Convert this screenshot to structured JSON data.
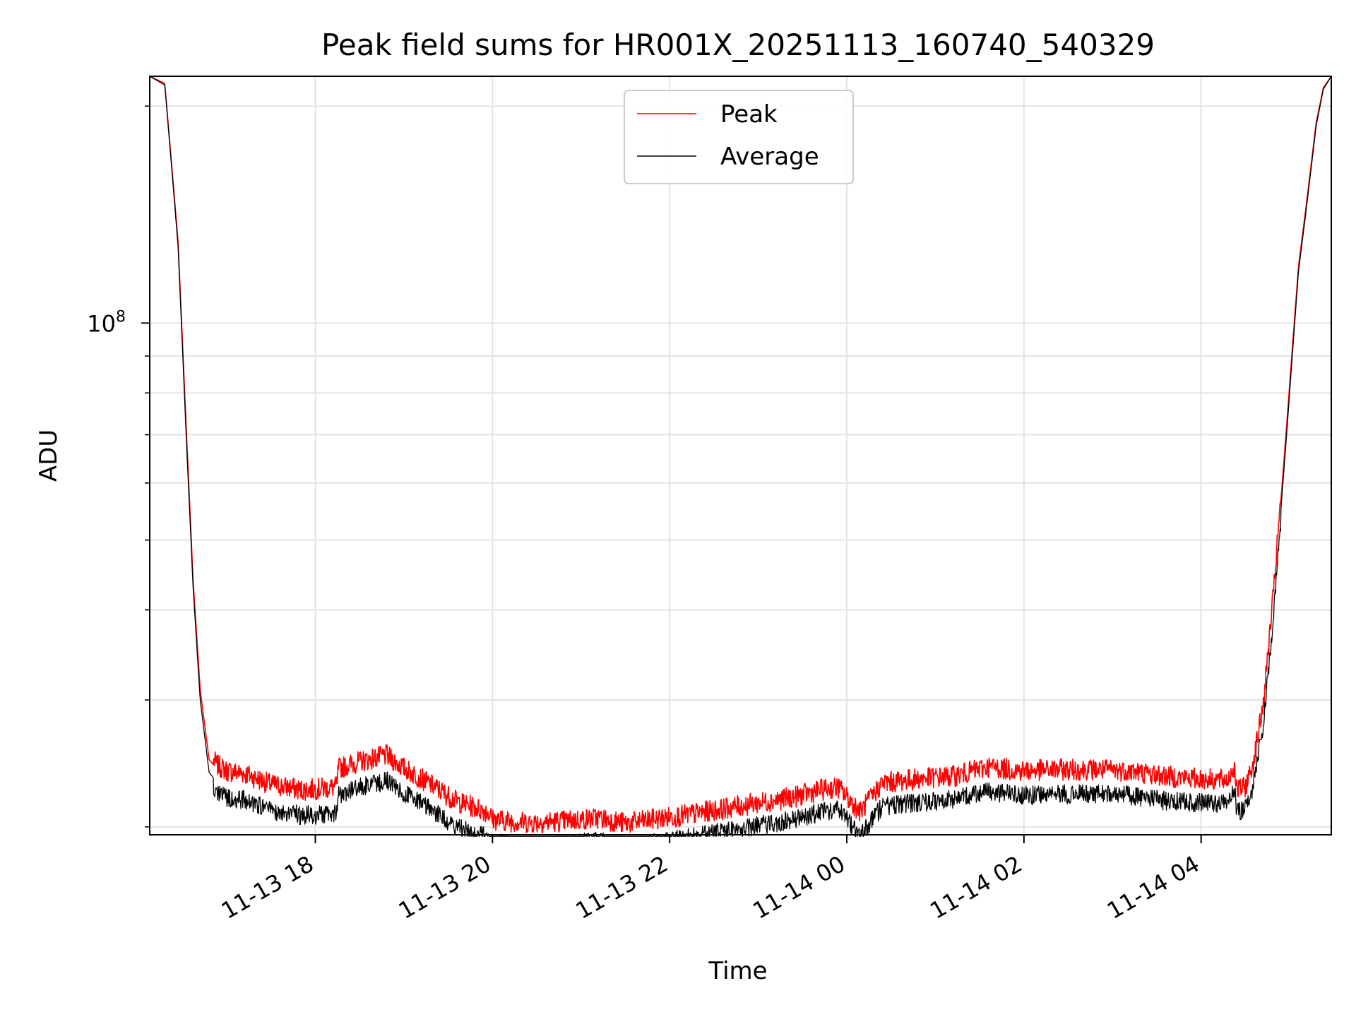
{
  "chart_data": {
    "type": "line",
    "title": "Peak field sums for HR001X_20251113_160740_540329",
    "xlabel": "Time",
    "ylabel": "ADU",
    "yscale": "log",
    "ylim": [
      19500000,
      220000000
    ],
    "xlim_hours": [
      16.13,
      29.47
    ],
    "x_ticks": [
      {
        "hour": 18,
        "label": "11-13 18"
      },
      {
        "hour": 20,
        "label": "11-13 20"
      },
      {
        "hour": 22,
        "label": "11-13 22"
      },
      {
        "hour": 24,
        "label": "11-14 00"
      },
      {
        "hour": 26,
        "label": "11-14 02"
      },
      {
        "hour": 28,
        "label": "11-14 04"
      }
    ],
    "y_major_ticks": [
      {
        "value": 100000000,
        "base": "10",
        "exp": "8"
      }
    ],
    "y_minor_ticks": [
      20000000,
      30000000,
      40000000,
      50000000,
      60000000,
      70000000,
      80000000,
      90000000,
      200000000
    ],
    "grid": true,
    "legend_position": "top-center",
    "legend": [
      "Peak",
      "Average"
    ],
    "series": [
      {
        "name": "Peak",
        "color": "#ff0000",
        "x_hours": [
          16.13,
          16.3,
          16.45,
          16.55,
          16.62,
          16.7,
          16.8,
          16.9,
          17.0,
          17.2,
          17.5,
          17.85,
          18.24,
          18.26,
          18.5,
          18.8,
          19.0,
          19.3,
          19.6,
          19.95,
          20.0,
          20.4,
          20.8,
          21.2,
          21.5,
          21.8,
          22.2,
          22.6,
          23.0,
          23.4,
          23.7,
          23.9,
          24.05,
          24.15,
          24.4,
          24.8,
          25.2,
          25.6,
          26.0,
          26.4,
          26.8,
          27.2,
          27.6,
          28.0,
          28.3,
          28.38,
          28.4,
          28.5,
          28.58,
          28.7,
          28.82,
          28.95,
          29.1,
          29.2,
          29.3,
          29.38,
          29.47
        ],
        "values": [
          220000000,
          215000000,
          130000000,
          68000000,
          44000000,
          31000000,
          24800000,
          24000000,
          23600000,
          23400000,
          22600000,
          22200000,
          22400000,
          23800000,
          24300000,
          24800000,
          23800000,
          22600000,
          21400000,
          20700000,
          20200000,
          20000000,
          20100000,
          20300000,
          19950000,
          20200000,
          20500000,
          20900000,
          21300000,
          21700000,
          22200000,
          22400000,
          21400000,
          20700000,
          22700000,
          23000000,
          23200000,
          23900000,
          23600000,
          23700000,
          23700000,
          23600000,
          23200000,
          23000000,
          22900000,
          24000000,
          22200000,
          22400000,
          24000000,
          29000000,
          42000000,
          68000000,
          120000000,
          150000000,
          190000000,
          212000000,
          220000000
        ]
      },
      {
        "name": "Average",
        "color": "#000000",
        "x_hours": [
          16.13,
          16.3,
          16.45,
          16.55,
          16.62,
          16.7,
          16.8,
          16.9,
          17.0,
          17.2,
          17.5,
          17.85,
          18.24,
          18.26,
          18.5,
          18.8,
          19.0,
          19.3,
          19.6,
          19.95,
          20.0,
          20.4,
          20.8,
          21.2,
          21.5,
          21.8,
          22.2,
          22.6,
          23.0,
          23.4,
          23.7,
          23.9,
          24.05,
          24.15,
          24.4,
          24.8,
          25.2,
          25.6,
          26.0,
          26.4,
          26.8,
          27.2,
          27.6,
          28.0,
          28.3,
          28.38,
          28.4,
          28.5,
          28.58,
          28.7,
          28.82,
          28.95,
          29.1,
          29.2,
          29.3,
          29.38,
          29.47
        ],
        "values": [
          220000000,
          214000000,
          128000000,
          66000000,
          43000000,
          30000000,
          23800000,
          23000000,
          22700000,
          22500000,
          21700000,
          21400000,
          21500000,
          22900000,
          23400000,
          23900000,
          23000000,
          21800000,
          20600000,
          19950000,
          19600000,
          19400000,
          19500000,
          19700000,
          19400000,
          19600000,
          19900000,
          20300000,
          20700000,
          21100000,
          21600000,
          21800000,
          20800000,
          20100000,
          22000000,
          22300000,
          22500000,
          23100000,
          22800000,
          22900000,
          22900000,
          22800000,
          22400000,
          22300000,
          22200000,
          23200000,
          21600000,
          21800000,
          23300000,
          28300000,
          41000000,
          66000000,
          118000000,
          148000000,
          188000000,
          211000000,
          220000000
        ]
      }
    ]
  }
}
